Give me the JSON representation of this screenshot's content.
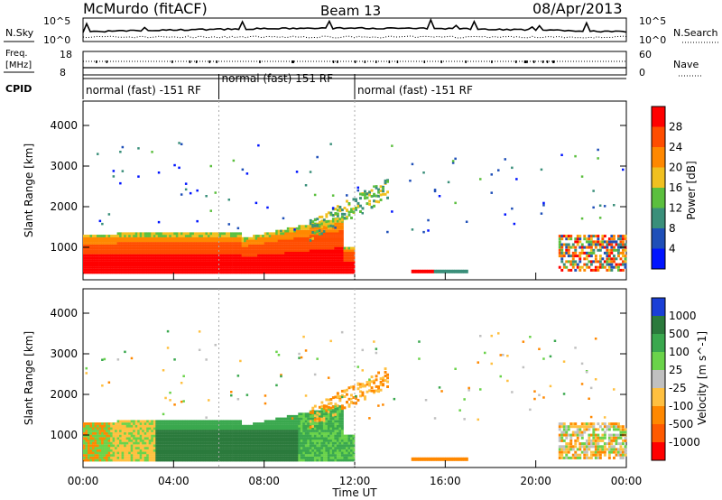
{
  "header": {
    "station": "McMurdo (fitACF)",
    "beam": "Beam 13",
    "date": "08/Apr/2013"
  },
  "noise_panel": {
    "left_label": "N.Sky",
    "right_label": "N.Search",
    "left_ticks": [
      "10^5",
      "10^0"
    ],
    "right_ticks": [
      "10^5",
      "10^0"
    ]
  },
  "freq_panel": {
    "left_label_1": "Freq.",
    "left_label_2": "[MHz]",
    "right_label": "Nave",
    "left_ticks": [
      "18",
      "8"
    ],
    "right_ticks": [
      "60",
      "0"
    ]
  },
  "cpid_panel": {
    "label": "CPID",
    "segments": [
      {
        "text": "normal (fast) -151 RF",
        "start": 0,
        "end": 6
      },
      {
        "text": "normal (fast) 151 RF",
        "start": 6,
        "end": 12
      },
      {
        "text": "normal (fast) -151 RF",
        "start": 12,
        "end": 24
      }
    ]
  },
  "chart_data": [
    {
      "type": "heatmap",
      "name": "power",
      "ylabel": "Slant Range [km]",
      "ylim": [
        200,
        4600
      ],
      "yticks": [
        "1000",
        "2000",
        "3000",
        "4000"
      ],
      "colorbar_label": "Power [dB]",
      "colorbar_ticks": [
        "4",
        "8",
        "12",
        "16",
        "20",
        "24",
        "28"
      ],
      "colors": [
        "#0014ff",
        "#1f4fb8",
        "#3a8f7a",
        "#5bbf3e",
        "#f0c020",
        "#ff8800",
        "#ff4d00",
        "#ff0000"
      ]
    },
    {
      "type": "heatmap",
      "name": "velocity",
      "ylabel": "Slant Range [km]",
      "ylim": [
        200,
        4600
      ],
      "yticks": [
        "1000",
        "2000",
        "3000",
        "4000"
      ],
      "colorbar_label": "Velocity [m s^-1]",
      "colorbar_ticks": [
        "1000",
        "500",
        "100",
        "25",
        "-25",
        "-100",
        "-500",
        "-1000"
      ],
      "colors": [
        "#1a3fd6",
        "#2b7a3c",
        "#3aa84e",
        "#6ad34a",
        "#c0c0c0",
        "#ffc040",
        "#ff8800",
        "#ff5a00",
        "#ff0000"
      ]
    }
  ],
  "xaxis": {
    "label": "Time UT",
    "ticks": [
      "00:00",
      "04:00",
      "08:00",
      "12:00",
      "16:00",
      "20:00",
      "00:00"
    ]
  }
}
